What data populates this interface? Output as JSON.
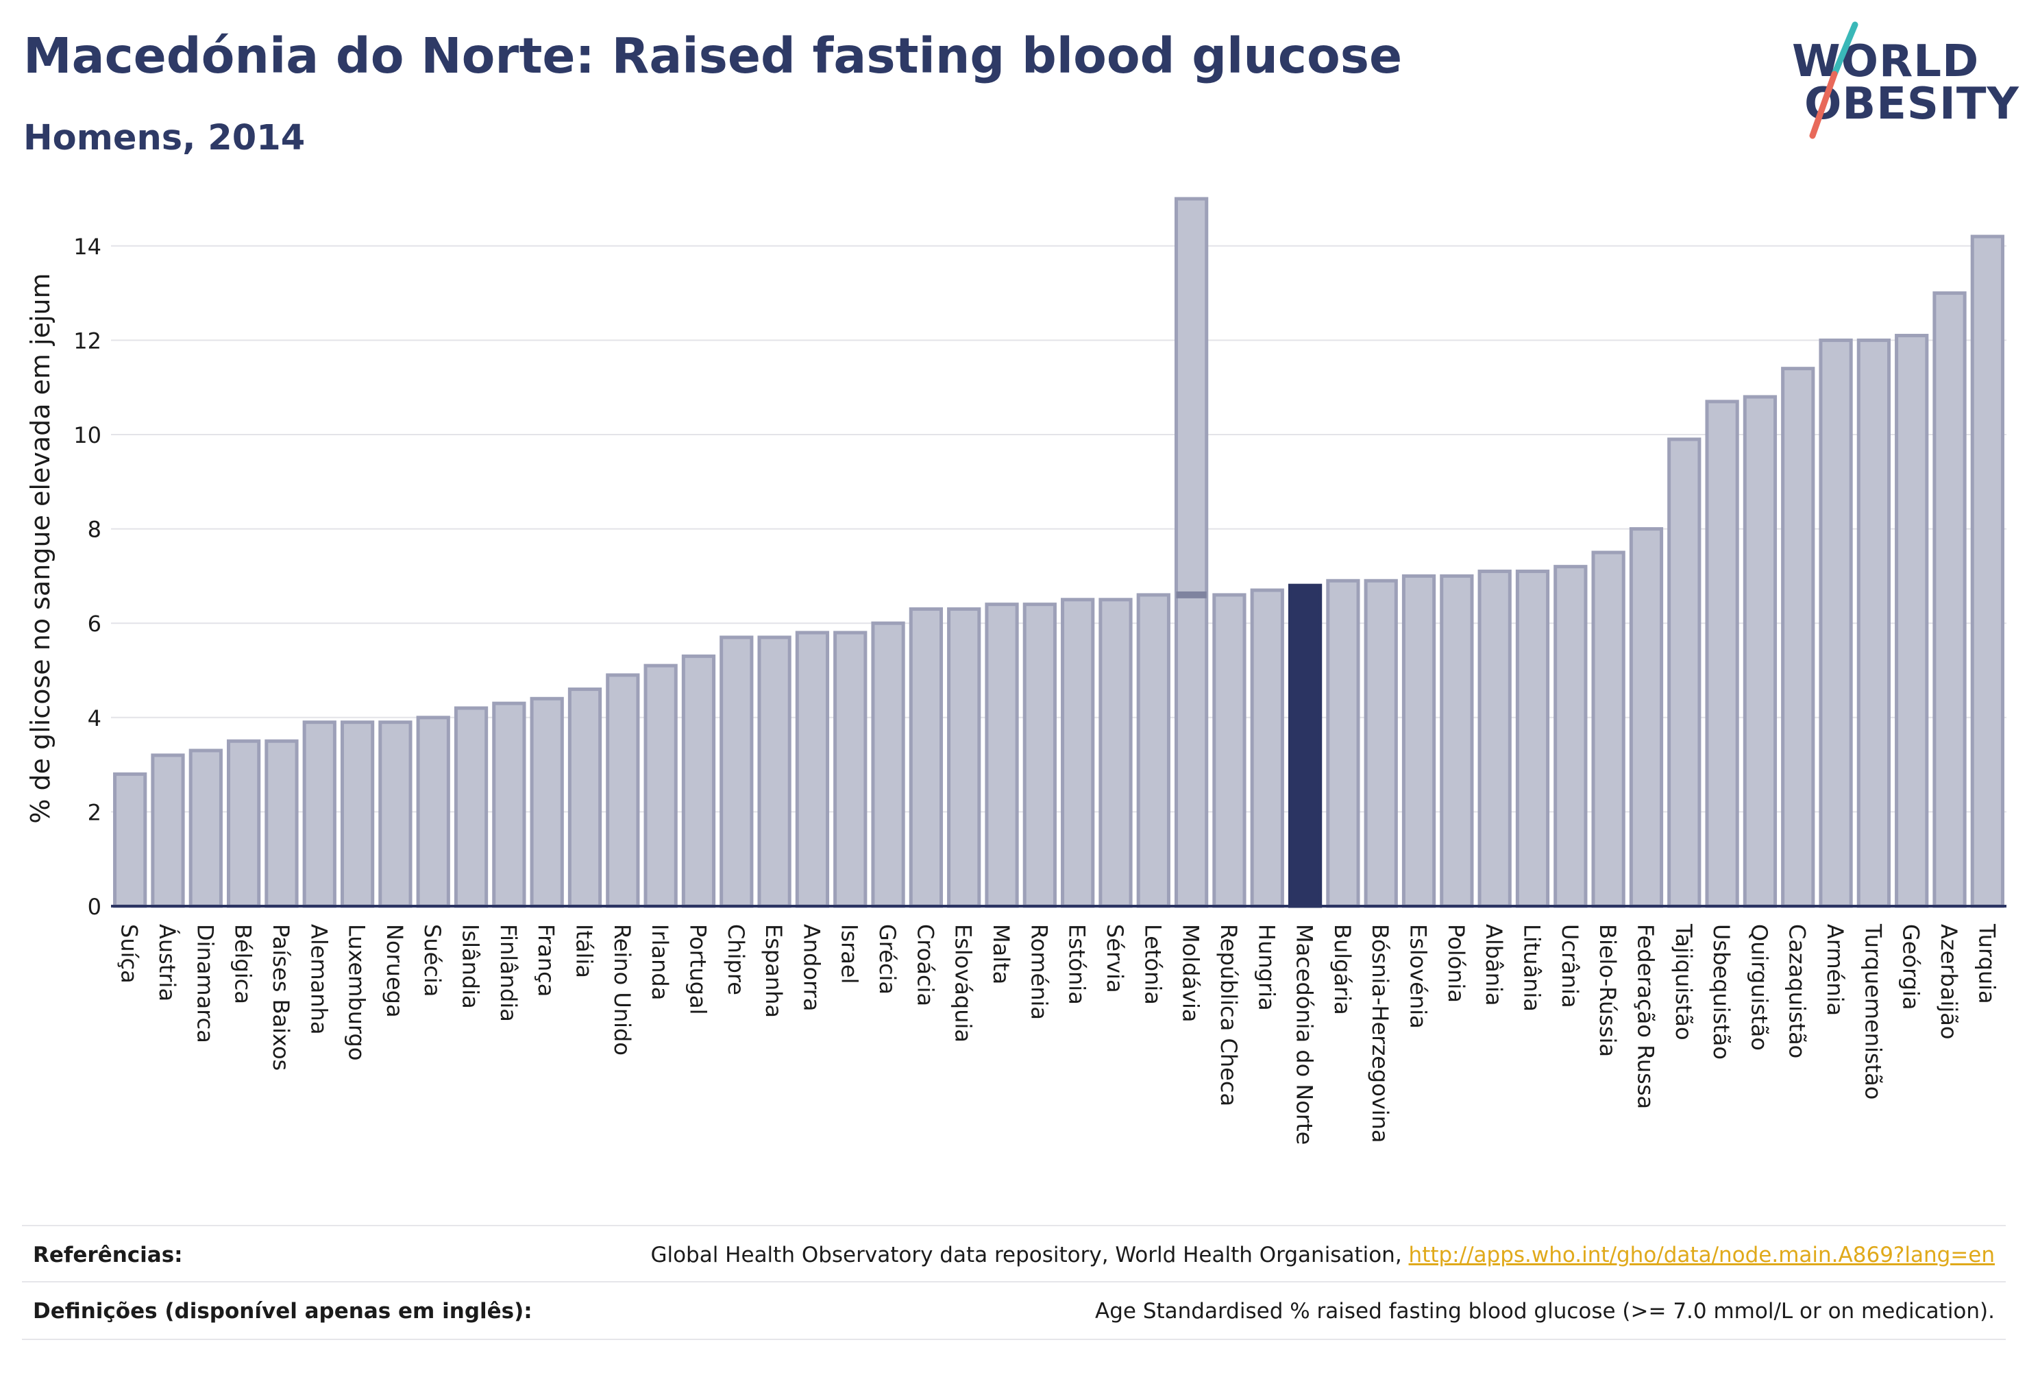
{
  "header": {
    "title": "Macedónia do Norte: Raised fasting blood glucose",
    "subtitle": "Homens, 2014"
  },
  "logo": {
    "line1": "WORLD",
    "line2": "OBESITY",
    "colors": {
      "text": "#2e3a66",
      "slash_top": "#3ab8b8",
      "slash_bottom": "#e8695a"
    }
  },
  "chart_data": {
    "type": "bar",
    "ylabel": "% de glicose no sangue elevada em jejum",
    "ylim": [
      0,
      15
    ],
    "yticks": [
      0,
      2,
      4,
      6,
      8,
      10,
      12,
      14
    ],
    "grid": true,
    "highlight": "Macedónia do Norte",
    "colors": {
      "bar": "#bfc2d1",
      "bar_edge": "#9da0b8",
      "highlight": "#2b3462",
      "grid": "#e3e3e8",
      "axis": "#2b3462"
    },
    "categories": [
      "Suíça",
      "Áustria",
      "Dinamarca",
      "Bélgica",
      "Países Baixos",
      "Alemanha",
      "Luxemburgo",
      "Noruega",
      "Suécia",
      "Islândia",
      "Finlândia",
      "França",
      "Itália",
      "Reino Unido",
      "Irlanda",
      "Portugal",
      "Chipre",
      "Espanha",
      "Andorra",
      "Israel",
      "Grécia",
      "Croácia",
      "Eslováquia",
      "Malta",
      "Roménia",
      "Estónia",
      "Sérvia",
      "Letónia",
      "Moldávia",
      "República Checa",
      "Hungria",
      "Macedónia do Norte",
      "Bulgária",
      "Bósnia-Herzegovina",
      "Eslovénia",
      "Polónia",
      "Albânia",
      "Lituânia",
      "Ucrânia",
      "Bielo-Rússia",
      "Federação Russa",
      "Tajiquistão",
      "Usbequistão",
      "Quirguistão",
      "Cazaquistão",
      "Arménia",
      "Turquemenistão",
      "Geórgia",
      "Azerbaijão",
      "Turquia"
    ],
    "values": [
      2.8,
      3.2,
      3.3,
      3.5,
      3.5,
      3.9,
      3.9,
      3.9,
      4.0,
      4.2,
      4.3,
      4.4,
      4.6,
      4.9,
      5.1,
      5.3,
      5.7,
      5.7,
      5.8,
      5.8,
      6.0,
      6.3,
      6.3,
      6.4,
      6.4,
      6.5,
      6.5,
      6.6,
      15.0,
      6.6,
      6.7,
      6.8,
      6.9,
      6.9,
      7.0,
      7.0,
      7.1,
      7.1,
      7.2,
      7.5,
      8.0,
      9.9,
      10.7,
      10.8,
      11.4,
      12.0,
      12.0,
      12.1,
      13.0,
      14.2
    ],
    "reference_line": 6.6
  },
  "footer": {
    "references_label": "Referências:",
    "references_text": "Global Health Observatory data repository, World Health Organisation, ",
    "references_link": "http://apps.who.int/gho/data/node.main.A869?lang=en",
    "definitions_label": "Definições (disponível apenas em inglês):",
    "definitions_text": "Age Standardised % raised fasting blood glucose (>= 7.0 mmol/L or on medication)."
  }
}
